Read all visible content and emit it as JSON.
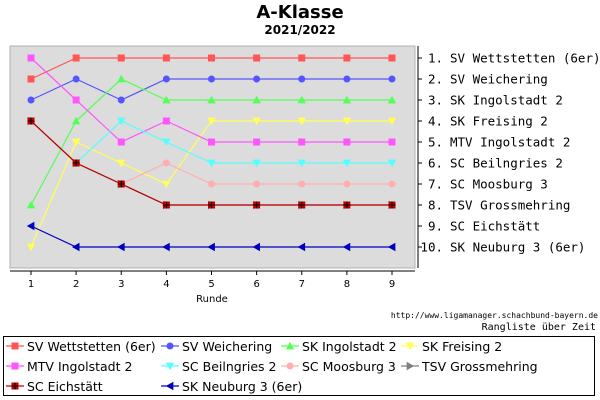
{
  "chart_data": {
    "type": "line",
    "title": "A-Klasse",
    "subtitle": "2021/2022",
    "xlabel": "Runde",
    "x": [
      1,
      2,
      3,
      4,
      5,
      6,
      7,
      8,
      9
    ],
    "ylim": [
      1,
      10
    ],
    "y_inverted": true,
    "grid": false,
    "legend_position": "bottom",
    "rank_labels": [
      "1.",
      "2.",
      "3.",
      "4.",
      "5.",
      "6.",
      "7.",
      "8.",
      "9.",
      "10."
    ],
    "standings": [
      "SV Wettstetten (6er)",
      "SV Weichering",
      "SK Ingolstadt 2",
      "SK Freising 2",
      "MTV Ingolstadt 2",
      "SC Beilngries 2",
      "SC Moosburg 3",
      "TSV Grossmehring",
      "SC Eichstätt",
      "SK Neuburg 3 (6er)"
    ],
    "series": [
      {
        "name": "SV Wettstetten (6er)",
        "color": "#ff5555",
        "marker": "square",
        "values": [
          2,
          1,
          1,
          1,
          1,
          1,
          1,
          1,
          1
        ]
      },
      {
        "name": "SV Weichering",
        "color": "#5555ff",
        "marker": "circle",
        "values": [
          3,
          2,
          3,
          2,
          2,
          2,
          2,
          2,
          2
        ]
      },
      {
        "name": "SK Ingolstadt 2",
        "color": "#55ff55",
        "marker": "triangle-up",
        "values": [
          8,
          4,
          2,
          3,
          3,
          3,
          3,
          3,
          3
        ]
      },
      {
        "name": "SK Freising 2",
        "color": "#ffff55",
        "marker": "triangle-down",
        "values": [
          10,
          5,
          6,
          7,
          4,
          4,
          4,
          4,
          4
        ]
      },
      {
        "name": "MTV Ingolstadt 2",
        "color": "#ff55ff",
        "marker": "square",
        "values": [
          1,
          3,
          5,
          4,
          5,
          5,
          5,
          5,
          5
        ]
      },
      {
        "name": "SC Beilngries 2",
        "color": "#55ffff",
        "marker": "triangle-down",
        "values": [
          4,
          6,
          4,
          5,
          6,
          6,
          6,
          6,
          6
        ]
      },
      {
        "name": "SC Moosburg 3",
        "color": "#ffafaf",
        "marker": "circle",
        "values": [
          4,
          6,
          7,
          6,
          7,
          7,
          7,
          7,
          7
        ]
      },
      {
        "name": "TSV Grossmehring",
        "color": "#808080",
        "marker": "triangle-right",
        "values": [
          4,
          6,
          7,
          8,
          8,
          8,
          8,
          8,
          8
        ]
      },
      {
        "name": "SC Eichstätt",
        "color": "#c00000",
        "marker": "plus-square",
        "values": [
          4,
          6,
          7,
          8,
          8,
          8,
          8,
          8,
          8
        ]
      },
      {
        "name": "SK Neuburg 3 (6er)",
        "color": "#0000c0",
        "marker": "triangle-left",
        "values": [
          9,
          10,
          10,
          10,
          10,
          10,
          10,
          10,
          10
        ]
      }
    ]
  },
  "footer": {
    "source": "http://www.ligamanager.schachbund-bayern.de",
    "caption": "Rangliste über Zeit"
  }
}
